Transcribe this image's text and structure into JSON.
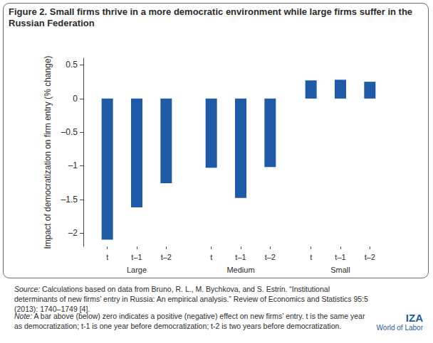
{
  "chart_data": {
    "type": "bar",
    "title": "Figure 2. Small firms thrive in a more democratic environment while large firms suffer in the Russian Federation",
    "ylabel": "Impact of democratization on firm entry (% change)",
    "categories": [
      "t",
      "t–1",
      "t–2",
      "t",
      "t–1",
      "t–2",
      "t",
      "t–1",
      "t–2"
    ],
    "groups": [
      "Large",
      "Medium",
      "Small"
    ],
    "values": [
      -2.1,
      -1.62,
      -1.26,
      -1.03,
      -1.48,
      -1.02,
      0.27,
      0.28,
      0.25
    ],
    "color": "#1f5aa6",
    "ylim": [
      -2.2,
      0.6
    ],
    "yticks": [
      {
        "value": -2,
        "label": "–2"
      },
      {
        "value": -1.5,
        "label": "–1.5"
      },
      {
        "value": -1,
        "label": "–1"
      },
      {
        "value": -0.5,
        "label": "–0.5"
      },
      0,
      0.5
    ],
    "grid": false
  },
  "source": {
    "label": "Source:",
    "text": "Calculations based on data from Bruno, R. L., M. Bychkova, and S. Estrin. “Institutional determinants of new firms’ entry in Russia: An empirical analysis.” Review of Economics and Statistics 95:5 (2013): 1740–1749 [4]."
  },
  "note": {
    "label": "Note:",
    "text": "A bar above (below) zero indicates a positive (negative) effect on new firms’ entry. t is the same year as democratization; t-1 is one year before democratization; t-2 is two years before democratization."
  },
  "logo": {
    "name": "IZA",
    "subtitle": "World of Labor"
  }
}
